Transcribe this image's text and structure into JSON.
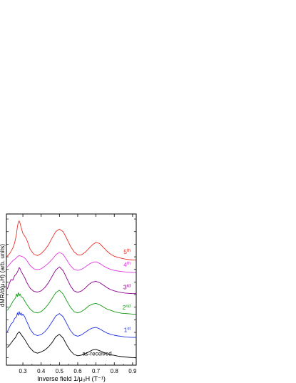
{
  "chart_data": {
    "type": "line",
    "xlabel": "Inverse field 1/μ₀H (T⁻¹)",
    "ylabel": "dMR/d(μ₀H)  (arb. units)",
    "xlim": [
      0.21,
      0.92
    ],
    "ylim": [
      -0.6,
      11.4
    ],
    "x_ticks": [
      "0.3",
      "0.4",
      "0.5",
      "0.6",
      "0.7",
      "0.8",
      "0.9"
    ],
    "y_ticks_labeled": false,
    "grid": false,
    "curve_labels": [
      {
        "base": "as-received",
        "sup": ""
      },
      {
        "base": "1",
        "sup": "st"
      },
      {
        "base": "2",
        "sup": "nd"
      },
      {
        "base": "3",
        "sup": "rd"
      },
      {
        "base": "4",
        "sup": "th"
      },
      {
        "base": "5",
        "sup": "th"
      }
    ],
    "series": [
      {
        "color": "#000000",
        "offset": 0.0,
        "x": [
          0.215,
          0.23,
          0.245,
          0.26,
          0.27,
          0.28,
          0.29,
          0.3,
          0.31,
          0.32,
          0.33,
          0.34,
          0.36,
          0.38,
          0.4,
          0.42,
          0.44,
          0.46,
          0.48,
          0.5,
          0.52,
          0.54,
          0.56,
          0.58,
          0.6,
          0.62,
          0.64,
          0.66,
          0.68,
          0.7,
          0.72,
          0.74,
          0.76,
          0.78,
          0.8,
          0.82,
          0.84,
          0.86,
          0.88,
          0.9,
          0.92
        ],
        "y": [
          0.8,
          1.05,
          1.35,
          1.6,
          1.9,
          2.05,
          1.85,
          1.65,
          1.45,
          1.2,
          0.95,
          0.75,
          0.45,
          0.35,
          0.45,
          0.6,
          0.85,
          1.2,
          1.65,
          1.85,
          1.55,
          1.0,
          0.55,
          0.25,
          0.15,
          0.2,
          0.3,
          0.45,
          0.6,
          0.65,
          0.55,
          0.42,
          0.3,
          0.22,
          0.18,
          0.12,
          0.08,
          0.05,
          0.02,
          0.0,
          -0.02
        ]
      },
      {
        "color": "#1f2fe0",
        "offset": 1.5,
        "x": [
          0.215,
          0.225,
          0.235,
          0.245,
          0.255,
          0.265,
          0.27,
          0.275,
          0.28,
          0.285,
          0.29,
          0.295,
          0.3,
          0.31,
          0.32,
          0.33,
          0.34,
          0.36,
          0.38,
          0.4,
          0.42,
          0.44,
          0.46,
          0.48,
          0.5,
          0.52,
          0.54,
          0.56,
          0.58,
          0.6,
          0.62,
          0.64,
          0.66,
          0.68,
          0.7,
          0.72,
          0.74,
          0.76,
          0.78,
          0.8,
          0.82,
          0.84,
          0.86,
          0.88,
          0.9,
          0.92
        ],
        "y": [
          0.55,
          0.85,
          1.15,
          1.3,
          1.6,
          1.75,
          2.05,
          1.85,
          2.15,
          1.9,
          2.05,
          1.85,
          1.95,
          1.75,
          1.4,
          1.1,
          0.75,
          0.35,
          0.25,
          0.32,
          0.55,
          0.9,
          1.35,
          1.8,
          2.0,
          1.75,
          1.2,
          0.65,
          0.3,
          0.2,
          0.3,
          0.5,
          0.7,
          0.85,
          0.9,
          0.78,
          0.6,
          0.45,
          0.35,
          0.28,
          0.22,
          0.18,
          0.14,
          0.12,
          0.1,
          0.1
        ]
      },
      {
        "color": "#139a13",
        "offset": 3.3,
        "x": [
          0.215,
          0.23,
          0.245,
          0.26,
          0.265,
          0.27,
          0.275,
          0.28,
          0.285,
          0.29,
          0.3,
          0.31,
          0.32,
          0.34,
          0.36,
          0.38,
          0.4,
          0.42,
          0.44,
          0.46,
          0.48,
          0.5,
          0.52,
          0.54,
          0.56,
          0.58,
          0.6,
          0.62,
          0.64,
          0.66,
          0.68,
          0.7,
          0.72,
          0.74,
          0.76,
          0.78,
          0.8,
          0.82,
          0.84,
          0.86,
          0.88,
          0.9,
          0.92
        ],
        "y": [
          0.45,
          0.75,
          1.15,
          1.45,
          1.75,
          1.55,
          1.85,
          1.6,
          1.75,
          1.55,
          1.45,
          1.2,
          0.95,
          0.55,
          0.3,
          0.25,
          0.35,
          0.6,
          0.95,
          1.4,
          1.85,
          2.05,
          1.75,
          1.2,
          0.7,
          0.35,
          0.25,
          0.35,
          0.55,
          0.8,
          0.95,
          1.0,
          0.9,
          0.72,
          0.55,
          0.45,
          0.35,
          0.28,
          0.22,
          0.2,
          0.18,
          0.15,
          0.15
        ]
      },
      {
        "color": "#8a008a",
        "offset": 4.9,
        "x": [
          0.215,
          0.225,
          0.235,
          0.245,
          0.255,
          0.265,
          0.275,
          0.28,
          0.285,
          0.29,
          0.3,
          0.31,
          0.32,
          0.34,
          0.36,
          0.38,
          0.4,
          0.42,
          0.44,
          0.46,
          0.48,
          0.5,
          0.52,
          0.54,
          0.56,
          0.58,
          0.6,
          0.62,
          0.64,
          0.66,
          0.68,
          0.7,
          0.72,
          0.74,
          0.76,
          0.78,
          0.8,
          0.82,
          0.84,
          0.86,
          0.88,
          0.9,
          0.92
        ],
        "y": [
          0.55,
          0.95,
          1.3,
          1.25,
          1.6,
          1.75,
          2.05,
          2.25,
          2.15,
          1.95,
          1.7,
          1.45,
          1.1,
          0.6,
          0.35,
          0.3,
          0.4,
          0.65,
          1.05,
          1.55,
          2.05,
          2.3,
          2.0,
          1.4,
          0.8,
          0.4,
          0.28,
          0.38,
          0.6,
          0.9,
          1.1,
          1.15,
          1.05,
          0.85,
          0.65,
          0.5,
          0.4,
          0.32,
          0.26,
          0.22,
          0.2,
          0.18,
          0.18
        ]
      },
      {
        "color": "#e03ae0",
        "offset": 6.7,
        "x": [
          0.215,
          0.23,
          0.245,
          0.26,
          0.27,
          0.28,
          0.29,
          0.3,
          0.31,
          0.32,
          0.34,
          0.36,
          0.38,
          0.4,
          0.42,
          0.44,
          0.46,
          0.48,
          0.5,
          0.52,
          0.54,
          0.56,
          0.58,
          0.6,
          0.62,
          0.64,
          0.66,
          0.68,
          0.7,
          0.72,
          0.74,
          0.76,
          0.78,
          0.8,
          0.82,
          0.84,
          0.86,
          0.88,
          0.9,
          0.92
        ],
        "y": [
          0.5,
          0.75,
          1.0,
          1.15,
          1.3,
          1.4,
          1.35,
          1.3,
          1.2,
          1.05,
          0.6,
          0.35,
          0.28,
          0.35,
          0.55,
          0.8,
          1.1,
          1.45,
          1.65,
          1.5,
          1.05,
          0.6,
          0.3,
          0.22,
          0.3,
          0.48,
          0.7,
          0.85,
          0.9,
          0.78,
          0.58,
          0.42,
          0.3,
          0.22,
          0.17,
          0.13,
          0.1,
          0.08,
          0.06,
          0.05
        ]
      },
      {
        "color": "#e8322a",
        "offset": 7.7,
        "x": [
          0.215,
          0.23,
          0.245,
          0.255,
          0.265,
          0.27,
          0.275,
          0.28,
          0.285,
          0.29,
          0.3,
          0.31,
          0.32,
          0.33,
          0.34,
          0.36,
          0.38,
          0.4,
          0.42,
          0.44,
          0.46,
          0.48,
          0.5,
          0.52,
          0.54,
          0.56,
          0.58,
          0.6,
          0.62,
          0.64,
          0.66,
          0.68,
          0.7,
          0.72,
          0.74,
          0.76,
          0.78,
          0.8,
          0.82,
          0.84,
          0.86,
          0.88,
          0.9,
          0.92
        ],
        "y": [
          0.35,
          0.6,
          1.0,
          1.4,
          2.1,
          2.7,
          3.05,
          3.15,
          2.95,
          2.65,
          2.15,
          1.95,
          1.7,
          1.3,
          0.9,
          0.5,
          0.4,
          0.55,
          0.85,
          1.25,
          1.8,
          2.3,
          2.5,
          2.3,
          1.75,
          1.15,
          0.7,
          0.45,
          0.45,
          0.65,
          0.95,
          1.25,
          1.45,
          1.35,
          1.05,
          0.75,
          0.5,
          0.35,
          0.25,
          0.18,
          0.12,
          0.08,
          0.05,
          0.04
        ]
      }
    ]
  }
}
